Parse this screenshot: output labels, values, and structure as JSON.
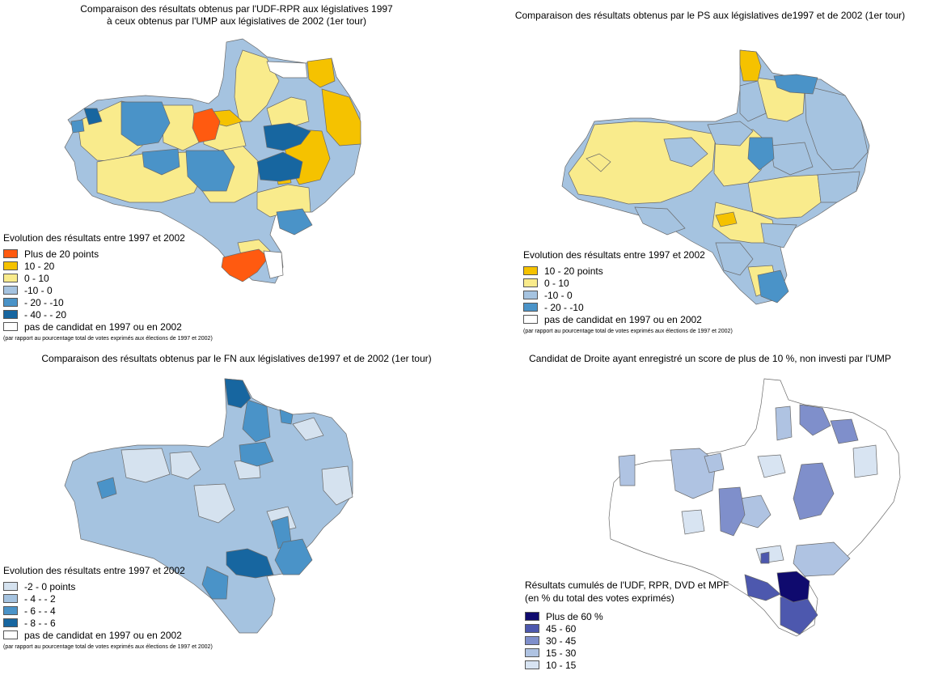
{
  "colors": {
    "orange": "#FF5A10",
    "gold": "#F5C200",
    "pale_yellow": "#F9EB8C",
    "light_blue": "#A5C3E0",
    "mid_blue": "#4A93C8",
    "dark_blue": "#1766A0",
    "white": "#FFFFFF",
    "fn_pale": "#D5E2EF",
    "fn_light": "#A5C3E0",
    "fn_mid": "#4A93C8",
    "fn_dark": "#1766A0",
    "dr_navy": "#0F0A6E",
    "dr_dark": "#4D58AE",
    "dr_mid": "#7F8FCB",
    "dr_light": "#AFC3E2",
    "dr_pale": "#D8E4F2"
  },
  "panels": {
    "udf": {
      "title_line1": "Comparaison des résultats obtenus par l'UDF-RPR aux législatives 1997",
      "title_line2": "à ceux obtenus par l'UMP aux législatives de 2002 (1er tour)",
      "legend_title": "Evolution des résultats entre 1997 et 2002",
      "legend": [
        {
          "label": "Plus de 20 points",
          "color": "#FF5A10"
        },
        {
          "label": "10 - 20",
          "color": "#F5C200"
        },
        {
          "label": "0 - 10",
          "color": "#F9EB8C"
        },
        {
          "label": "-10 - 0",
          "color": "#A5C3E0"
        },
        {
          "label": "- 20 - -10",
          "color": "#4A93C8"
        },
        {
          "label": "- 40 - - 20",
          "color": "#1766A0"
        },
        {
          "label": "pas de candidat en 1997 ou en 2002",
          "color": "#FFFFFF"
        }
      ],
      "note": "(par rapport au pourcentage total de votes exprimés aux élections de 1997 et 2002)"
    },
    "ps": {
      "title": "Comparaison des résultats obtenus par le PS aux législatives de1997 et de 2002 (1er tour)",
      "legend_title": "Evolution des résultats entre 1997 et 2002",
      "legend": [
        {
          "label": "10 - 20 points",
          "color": "#F5C200"
        },
        {
          "label": "0 - 10",
          "color": "#F9EB8C"
        },
        {
          "label": "-10 - 0",
          "color": "#A5C3E0"
        },
        {
          "label": "- 20 - -10",
          "color": "#4A93C8"
        },
        {
          "label": "pas de candidat en 1997 ou en 2002",
          "color": "#FFFFFF"
        }
      ],
      "note": "(par rapport au pourcentage total de votes exprimés aux élections de 1997 et 2002)"
    },
    "fn": {
      "title": "Comparaison des résultats obtenus par le FN aux législatives de1997 et de 2002 (1er tour)",
      "legend_title": "Evolution des résultats entre 1997 et 2002",
      "legend": [
        {
          "label": "-2 - 0 points",
          "color": "#D5E2EF"
        },
        {
          "label": "- 4 - - 2",
          "color": "#A5C3E0"
        },
        {
          "label": "- 6 - - 4",
          "color": "#4A93C8"
        },
        {
          "label": "- 8 - - 6",
          "color": "#1766A0"
        },
        {
          "label": "pas de candidat en 1997 ou en 2002",
          "color": "#FFFFFF"
        }
      ],
      "note": "(par rapport au pourcentage total de votes exprimés aux élections de 1997 et 2002)"
    },
    "droite": {
      "title": "Candidat de Droite ayant enregistré un score de plus de 10 %, non investi par l'UMP",
      "legend_title_line1": "Résultats cumulés de l'UDF, RPR, DVD et MPF",
      "legend_title_line2": "(en % du total des votes exprimés)",
      "legend": [
        {
          "label": "Plus de 60  %",
          "color": "#0F0A6E"
        },
        {
          "label": "45 - 60",
          "color": "#4D58AE"
        },
        {
          "label": "30 - 45",
          "color": "#7F8FCB"
        },
        {
          "label": "15 - 30",
          "color": "#AFC3E2"
        },
        {
          "label": "10 - 15",
          "color": "#D8E4F2"
        }
      ]
    }
  }
}
